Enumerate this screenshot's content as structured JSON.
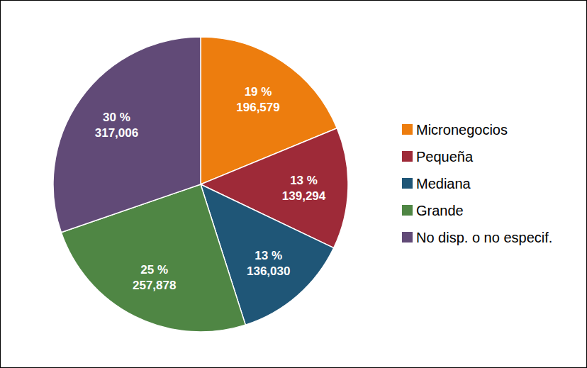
{
  "chart_data": {
    "type": "pie",
    "categories": [
      "Micronegocios",
      "Pequeña",
      "Mediana",
      "Grande",
      "No disp. o no especif."
    ],
    "values": [
      196579,
      139294,
      136030,
      257878,
      317006
    ],
    "value_labels": [
      "196,579",
      "139,294",
      "136,030",
      "257,878",
      "317,006"
    ],
    "percents": [
      19,
      13,
      13,
      25,
      30
    ],
    "percent_labels": [
      "19 %",
      "13 %",
      "13 %",
      "25 %",
      "30 %"
    ],
    "colors": [
      "#ED7D0E",
      "#9E2A38",
      "#1F5677",
      "#4F8644",
      "#614A77"
    ],
    "data_labels": true,
    "legend": "right"
  }
}
